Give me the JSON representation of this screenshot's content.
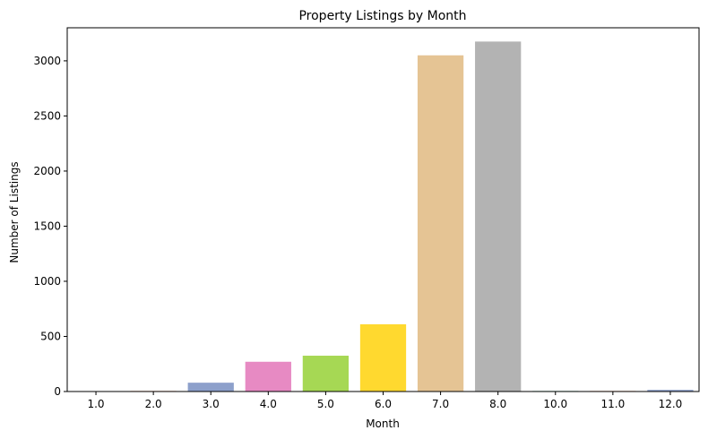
{
  "chart_data": {
    "type": "bar",
    "title": "Property Listings by Month",
    "xlabel": "Month",
    "ylabel": "Number of Listings",
    "categories": [
      "1.0",
      "2.0",
      "3.0",
      "4.0",
      "5.0",
      "6.0",
      "7.0",
      "8.0",
      "10.0",
      "11.0",
      "12.0"
    ],
    "values": [
      2,
      5,
      80,
      270,
      325,
      610,
      3050,
      3175,
      5,
      5,
      15
    ],
    "colors": [
      "#66c2a5",
      "#fc8d62",
      "#8da0cb",
      "#e78ac3",
      "#a6d854",
      "#ffd92f",
      "#e5c494",
      "#b3b3b3",
      "#66c2a5",
      "#fc8d62",
      "#8da0cb"
    ],
    "ylim": [
      0,
      3300
    ],
    "yticks": [
      0,
      500,
      1000,
      1500,
      2000,
      2500,
      3000
    ],
    "grid": false,
    "legend": "none"
  }
}
